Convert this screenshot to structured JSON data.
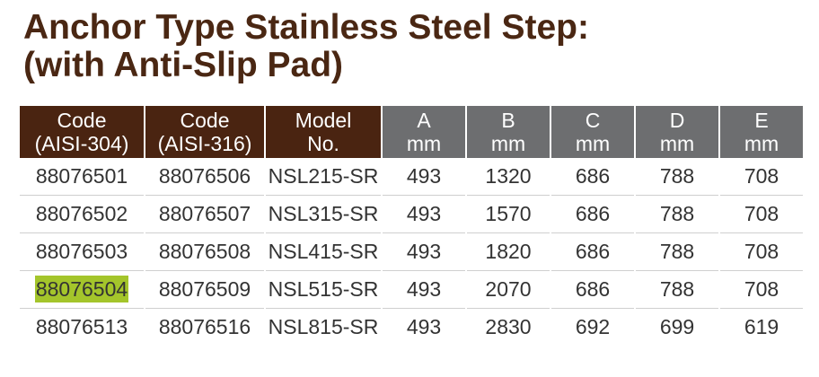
{
  "title": [
    "Anchor Type Stainless Steel Step:",
    "(with Anti-Slip Pad)"
  ],
  "table": {
    "header": [
      [
        "Code",
        "(AISI-304)"
      ],
      [
        "Code",
        "(AISI-316)"
      ],
      [
        "Model",
        "No."
      ],
      [
        "A",
        "mm"
      ],
      [
        "B",
        "mm"
      ],
      [
        "C",
        "mm"
      ],
      [
        "D",
        "mm"
      ],
      [
        "E",
        "mm"
      ]
    ],
    "rows": [
      [
        "88076501",
        "88076506",
        "NSL215-SR",
        "493",
        "1320",
        "686",
        "788",
        "708"
      ],
      [
        "88076502",
        "88076507",
        "NSL315-SR",
        "493",
        "1570",
        "686",
        "788",
        "708"
      ],
      [
        "88076503",
        "88076508",
        "NSL415-SR",
        "493",
        "1820",
        "686",
        "788",
        "708"
      ],
      [
        "88076504",
        "88076509",
        "NSL515-SR",
        "493",
        "2070",
        "686",
        "788",
        "708"
      ],
      [
        "88076513",
        "88076516",
        "NSL815-SR",
        "493",
        "2830",
        "692",
        "699",
        "619"
      ]
    ]
  }
}
